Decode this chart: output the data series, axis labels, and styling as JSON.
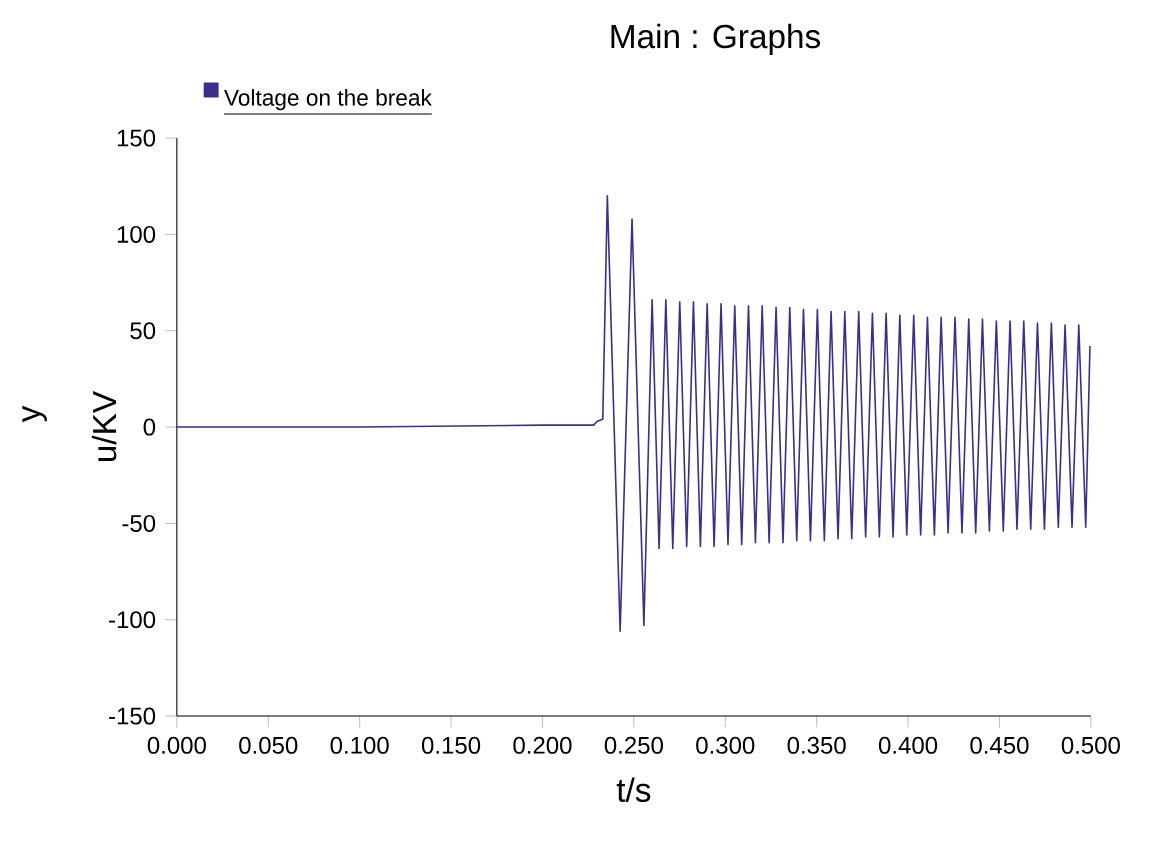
{
  "chart_data": {
    "type": "line",
    "title": "Main : Graphs",
    "xlabel": "t/s",
    "ylabel": "u/KV",
    "annotations": [
      "y"
    ],
    "legend": "top left",
    "line_style": "solid",
    "marker": "none",
    "grid": false,
    "xlim": [
      0,
      0.5
    ],
    "ylim": [
      -150,
      150
    ],
    "xticks": [
      {
        "value": 0,
        "label": "0.000"
      },
      {
        "value": 0.05,
        "label": "0.050"
      },
      {
        "value": 0.1,
        "label": "0.100"
      },
      {
        "value": 0.15,
        "label": "0.150"
      },
      {
        "value": 0.2,
        "label": "0.200"
      },
      {
        "value": 0.25,
        "label": "0.250"
      },
      {
        "value": 0.3,
        "label": "0.300"
      },
      {
        "value": 0.35,
        "label": "0.350"
      },
      {
        "value": 0.4,
        "label": "0.400"
      },
      {
        "value": 0.45,
        "label": "0.450"
      },
      {
        "value": 0.5,
        "label": "0.500"
      }
    ],
    "yticks": [
      -150,
      -100,
      -50,
      0,
      50,
      100,
      150
    ],
    "series": [
      {
        "name": "Voltage on the break",
        "color": "#3b2e8e",
        "x": [
          0,
          0.1,
          0.2,
          0.228,
          0.23,
          0.233,
          0.2355,
          0.2425,
          0.249,
          0.2555,
          0.26,
          0.2638,
          0.2675,
          0.2713,
          0.2751,
          0.2789,
          0.2826,
          0.2864,
          0.2901,
          0.2939,
          0.2977,
          0.3015,
          0.3052,
          0.309,
          0.3127,
          0.3165,
          0.3202,
          0.324,
          0.3278,
          0.3316,
          0.3353,
          0.3391,
          0.3428,
          0.3466,
          0.3504,
          0.3542,
          0.3579,
          0.3617,
          0.3654,
          0.3692,
          0.373,
          0.3768,
          0.3805,
          0.3843,
          0.388,
          0.3918,
          0.3955,
          0.3993,
          0.4031,
          0.4069,
          0.4106,
          0.4144,
          0.4181,
          0.4219,
          0.4257,
          0.4295,
          0.4332,
          0.437,
          0.4407,
          0.4445,
          0.4483,
          0.4521,
          0.4558,
          0.4596,
          0.4633,
          0.4671,
          0.4708,
          0.4746,
          0.4784,
          0.4822,
          0.4859,
          0.4897,
          0.4934,
          0.4972,
          0.4995
        ],
        "values": [
          0,
          0,
          1,
          1,
          3,
          4,
          120,
          -106,
          108,
          -103,
          66,
          -63,
          66,
          -63,
          65,
          -62,
          65,
          -62,
          64,
          -62,
          64,
          -61,
          63,
          -61,
          63,
          -60,
          63,
          -60,
          62,
          -60,
          62,
          -59,
          61,
          -59,
          61,
          -59,
          60,
          -58,
          60,
          -58,
          60,
          -57,
          59,
          -57,
          59,
          -57,
          58,
          -56,
          58,
          -56,
          57,
          -56,
          57,
          -55,
          57,
          -55,
          56,
          -55,
          56,
          -54,
          55,
          -54,
          55,
          -53,
          55,
          -53,
          54,
          -53,
          54,
          -52,
          53,
          -52,
          53,
          -52,
          42
        ]
      }
    ]
  }
}
